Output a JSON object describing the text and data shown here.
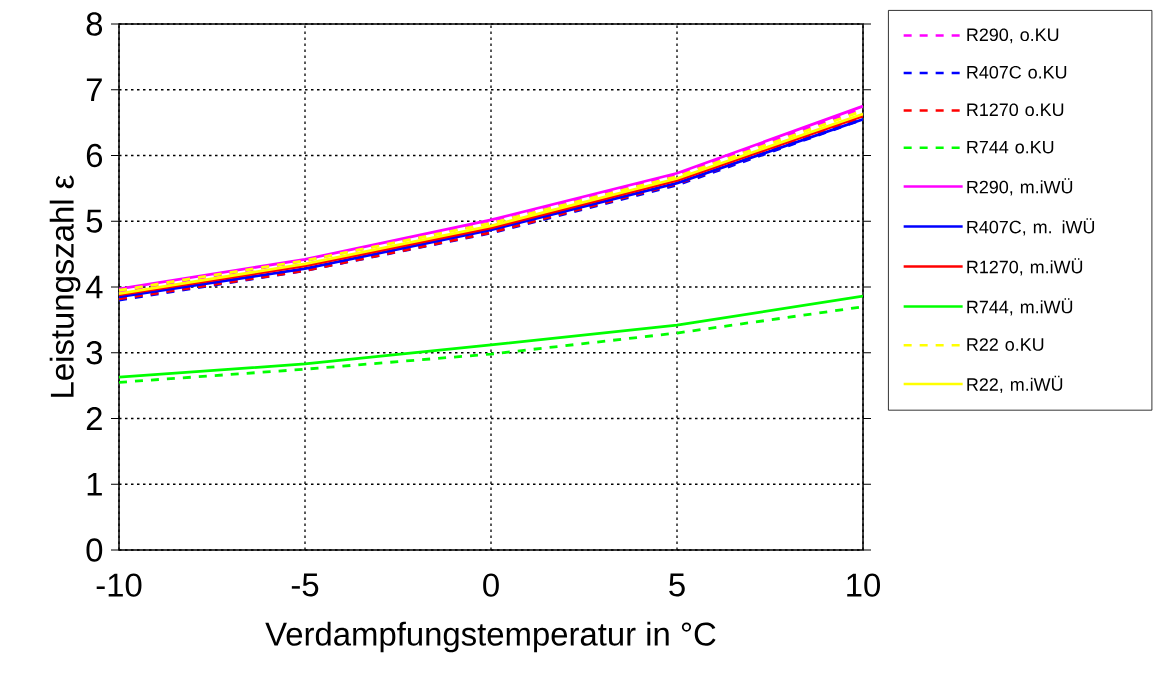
{
  "chart_data": {
    "type": "line",
    "xlabel": "Verdampfungstemperatur in °C",
    "ylabel": "Leistungszahl ε",
    "x": [
      -10,
      -5,
      0,
      5,
      10
    ],
    "xlim": [
      -10,
      10
    ],
    "xticks": [
      -10,
      -5,
      0,
      5,
      10
    ],
    "ylim": [
      0,
      8
    ],
    "yticks": [
      0,
      1,
      2,
      3,
      4,
      5,
      6,
      7,
      8
    ],
    "grid": true,
    "legend": "right",
    "marker": "none",
    "series": [
      {
        "name": "R290, o.KU",
        "color": "#ff00ff",
        "line_style": "dashed",
        "values": [
          3.93,
          4.4,
          4.98,
          5.7,
          6.72
        ]
      },
      {
        "name": "R407C o.KU",
        "color": "#0000ff",
        "line_style": "dashed",
        "values": [
          3.8,
          4.25,
          4.82,
          5.55,
          6.55
        ]
      },
      {
        "name": "R1270 o.KU",
        "color": "#ff0000",
        "line_style": "dashed",
        "values": [
          3.82,
          4.25,
          4.83,
          5.57,
          6.57
        ]
      },
      {
        "name": "R744 o.KU",
        "color": "#00ff00",
        "line_style": "dashed",
        "values": [
          2.55,
          2.75,
          2.98,
          3.3,
          3.7
        ]
      },
      {
        "name": "R290, m.iWÜ",
        "color": "#ff00ff",
        "line_style": "solid",
        "values": [
          3.97,
          4.42,
          5.02,
          5.73,
          6.75
        ]
      },
      {
        "name": "R407C, m. iWÜ",
        "color": "#0000ff",
        "line_style": "solid",
        "values": [
          3.85,
          4.28,
          4.87,
          5.58,
          6.55
        ]
      },
      {
        "name": "R1270, m.iWÜ",
        "color": "#ff0000",
        "line_style": "solid",
        "values": [
          3.88,
          4.32,
          4.9,
          5.62,
          6.6
        ]
      },
      {
        "name": "R744, m.iWÜ",
        "color": "#00ff00",
        "line_style": "solid",
        "values": [
          2.63,
          2.83,
          3.12,
          3.42,
          3.86
        ]
      },
      {
        "name": "R22 o.KU",
        "color": "#ffff00",
        "line_style": "dashed",
        "values": [
          3.95,
          4.4,
          4.97,
          5.68,
          6.68
        ]
      },
      {
        "name": "R22, m.iWÜ",
        "color": "#ffff00",
        "line_style": "solid",
        "values": [
          3.9,
          4.35,
          4.93,
          5.65,
          6.63
        ]
      }
    ]
  }
}
